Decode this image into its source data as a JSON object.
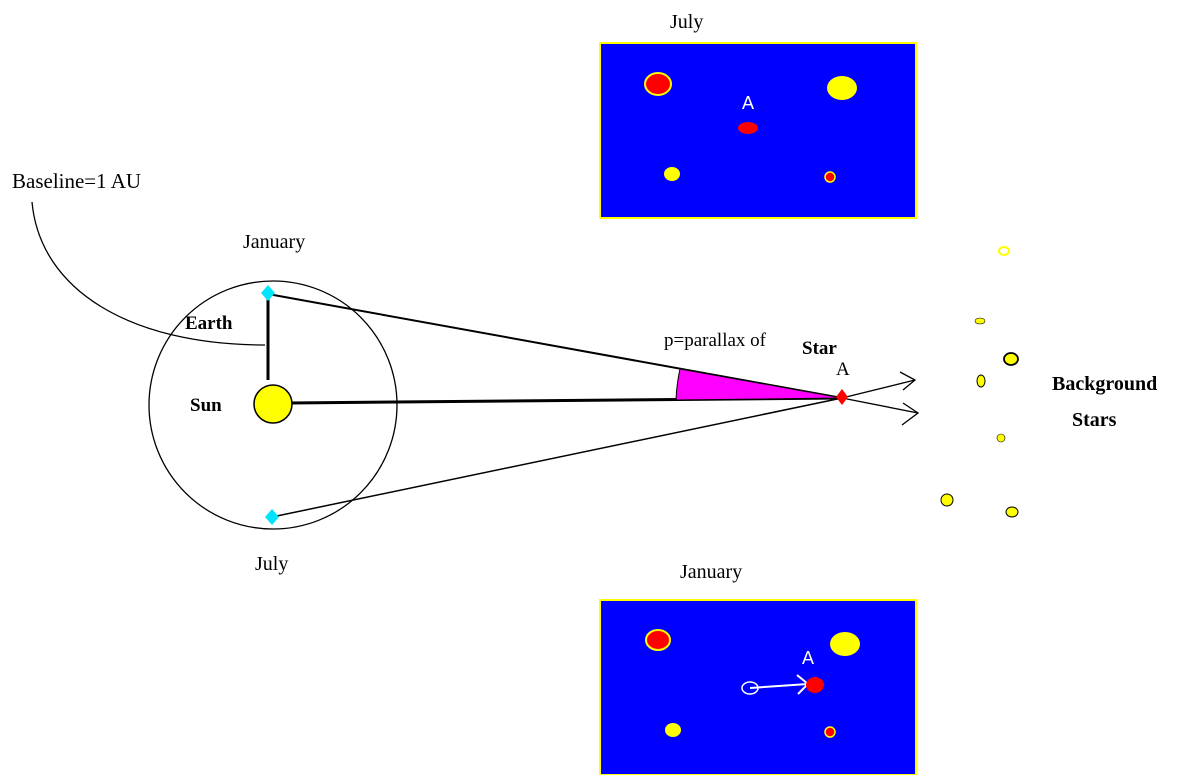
{
  "labels": {
    "baseline": "Baseline=1 AU",
    "january_orbit": "January",
    "july_orbit": "July",
    "earth": "Earth",
    "sun": "Sun",
    "parallax": "p=parallax of",
    "star": "Star",
    "star_letter": "A",
    "background_line1": "Background",
    "background_line2": "Stars",
    "july_panel_title": "July",
    "january_panel_title": "January",
    "panel_star_letter_top": "A",
    "panel_star_letter_bottom": "A"
  },
  "colors": {
    "panel_bg": "#0000ff",
    "panel_border": "#ffff00",
    "sun": "#ffff00",
    "earth": "#00e5ff",
    "star_a": "#ff0000",
    "parallax_wedge": "#ff00ff",
    "panel_star_yellow": "#ffff00",
    "panel_star_red": "#ff0000",
    "background_star": "#ffff00"
  }
}
